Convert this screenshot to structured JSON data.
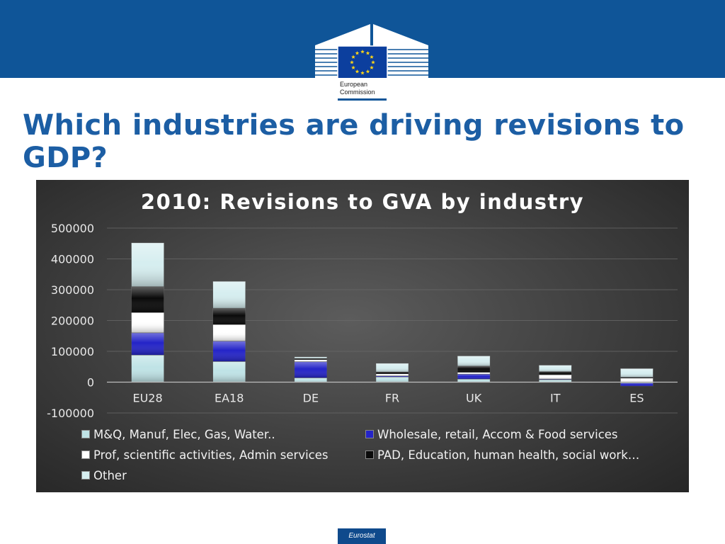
{
  "header": {
    "logo_icon": "eu-flag-building-icon",
    "logo_line1": "European",
    "logo_line2": "Commission"
  },
  "slide": {
    "title": "Which industries are driving revisions to GDP?"
  },
  "footer": {
    "badge": "Eurostat"
  },
  "chart_data": {
    "type": "bar",
    "stacked": true,
    "title": "2010: Revisions to GVA by industry",
    "xlabel": "",
    "ylabel": "",
    "ylim": [
      -100000,
      500000
    ],
    "yticks": [
      500000,
      400000,
      300000,
      200000,
      100000,
      0,
      -100000
    ],
    "ytick_labels": [
      "500000",
      "400000",
      "300000",
      "200000",
      "100000",
      "0",
      "-100000"
    ],
    "grid": true,
    "legend_position": "bottom",
    "categories": [
      "EU28",
      "EA18",
      "DE",
      "FR",
      "UK",
      "IT",
      "ES"
    ],
    "series": [
      {
        "name": "M&Q, Manuf, Elec, Gas, Water..",
        "color": "#bfe3e6",
        "values": [
          88000,
          67000,
          14000,
          17000,
          10000,
          8000,
          -3000
        ]
      },
      {
        "name": "Wholesale, retail, Accom & Food services",
        "color": "#2424c8",
        "values": [
          72000,
          66000,
          52000,
          3000,
          16000,
          2000,
          -10000
        ]
      },
      {
        "name": "Prof, scientific activities, Admin services",
        "color": "#ffffff",
        "values": [
          66000,
          54000,
          7000,
          7000,
          6000,
          14000,
          13000
        ]
      },
      {
        "name": "PAD, Education, human health, social work…",
        "color": "#0a0a0a",
        "values": [
          84000,
          53000,
          4000,
          6000,
          20000,
          10000,
          3000
        ]
      },
      {
        "name": "Other",
        "color": "#d6eef0",
        "values": [
          142000,
          87000,
          5000,
          28000,
          33000,
          21000,
          28000
        ]
      }
    ]
  }
}
